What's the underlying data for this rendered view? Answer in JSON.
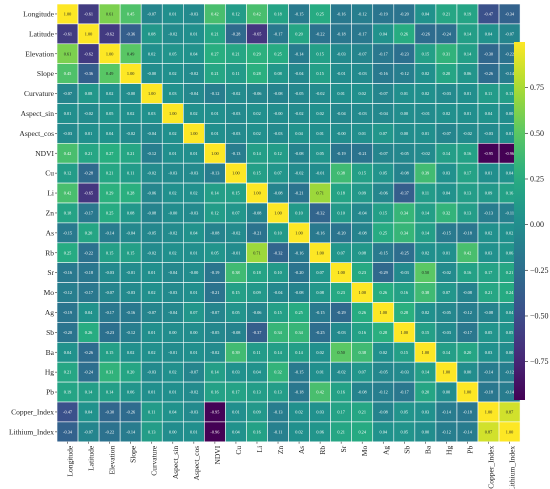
{
  "chart_data": {
    "type": "heatmap",
    "title": "",
    "labels": [
      "Longitude",
      "Latitude",
      "Elevation",
      "Slope",
      "Curvature",
      "Aspect_sin",
      "Aspect_cos",
      "NDVI",
      "Cu",
      "Li",
      "Zn",
      "As",
      "Rb",
      "Sr",
      "Mo",
      "Ag",
      "Sb",
      "Ba",
      "Hg",
      "Pb",
      "Copper_Index",
      "Lithium_Index"
    ],
    "colorscale": "viridis",
    "colorbar": {
      "vmin": -0.96,
      "vmax": 1.0,
      "ticks": [
        0.75,
        0.5,
        0.25,
        0,
        -0.25,
        -0.5,
        -0.75
      ],
      "tick_labels": [
        "0.75",
        "0.50",
        "0.25",
        "0.00",
        "−0.25",
        "−0.50",
        "−0.75"
      ]
    },
    "matrix": [
      [
        1.0,
        -0.61,
        0.61,
        0.45,
        -0.07,
        0.01,
        -0.03,
        0.42,
        0.12,
        0.42,
        0.18,
        -0.15,
        0.25,
        -0.16,
        -0.12,
        -0.19,
        -0.2,
        0.04,
        0.21,
        0.19,
        -0.47,
        -0.34
      ],
      [
        -0.61,
        1.0,
        -0.62,
        -0.36,
        0.08,
        -0.02,
        0.01,
        0.21,
        -0.28,
        -0.65,
        -0.17,
        0.2,
        -0.22,
        -0.18,
        -0.17,
        0.04,
        0.26,
        -0.26,
        -0.24,
        0.14,
        0.04,
        -0.07
      ],
      [
        0.61,
        -0.62,
        1.0,
        0.49,
        0.02,
        0.05,
        0.04,
        0.27,
        0.21,
        0.29,
        0.25,
        -0.14,
        0.15,
        -0.03,
        -0.07,
        -0.17,
        -0.23,
        0.15,
        0.31,
        0.14,
        -0.3,
        -0.22
      ],
      [
        0.45,
        -0.36,
        0.49,
        1.0,
        -0.0,
        0.02,
        -0.02,
        0.21,
        0.11,
        0.28,
        0.08,
        -0.04,
        0.15,
        -0.01,
        -0.03,
        -0.16,
        -0.12,
        0.02,
        0.2,
        0.06,
        -0.26,
        -0.14
      ],
      [
        -0.07,
        0.08,
        0.02,
        -0.0,
        1.0,
        0.03,
        -0.04,
        -0.12,
        -0.02,
        -0.06,
        -0.08,
        -0.05,
        -0.02,
        0.01,
        0.02,
        -0.07,
        0.01,
        0.02,
        -0.03,
        0.01,
        0.11,
        0.13
      ],
      [
        0.01,
        -0.02,
        0.05,
        0.02,
        0.03,
        1.0,
        0.02,
        0.01,
        -0.03,
        0.02,
        -0.0,
        -0.02,
        0.02,
        -0.04,
        -0.03,
        -0.04,
        0.0,
        -0.01,
        0.02,
        0.01,
        0.04,
        0.0
      ],
      [
        -0.03,
        0.01,
        0.04,
        -0.02,
        -0.04,
        0.02,
        1.0,
        0.01,
        -0.03,
        0.02,
        -0.03,
        0.04,
        0.01,
        -0.0,
        0.01,
        0.07,
        0.0,
        0.01,
        -0.07,
        -0.02,
        -0.03,
        0.01
      ],
      [
        0.42,
        0.21,
        0.27,
        0.21,
        -0.12,
        0.01,
        0.01,
        1.0,
        -0.13,
        0.14,
        0.12,
        -0.08,
        0.05,
        -0.19,
        -0.21,
        -0.07,
        -0.05,
        -0.02,
        0.14,
        0.16,
        -0.95,
        -0.96
      ],
      [
        0.12,
        -0.28,
        0.21,
        0.11,
        -0.02,
        -0.03,
        -0.03,
        -0.13,
        1.0,
        0.15,
        0.07,
        -0.02,
        -0.01,
        0.38,
        0.15,
        0.05,
        -0.08,
        0.39,
        0.03,
        0.17,
        0.01,
        0.04
      ],
      [
        0.42,
        -0.65,
        0.29,
        0.28,
        -0.06,
        0.02,
        0.02,
        0.14,
        0.15,
        1.0,
        -0.08,
        -0.21,
        0.71,
        0.18,
        0.09,
        -0.06,
        -0.37,
        0.11,
        0.04,
        0.13,
        0.09,
        0.16
      ],
      [
        0.18,
        -0.17,
        0.25,
        0.08,
        -0.08,
        -0.0,
        -0.03,
        0.12,
        0.07,
        -0.08,
        1.0,
        0.1,
        -0.32,
        0.1,
        -0.04,
        0.15,
        0.34,
        0.14,
        0.32,
        0.13,
        -0.13,
        -0.11
      ],
      [
        -0.15,
        0.2,
        -0.14,
        -0.04,
        -0.05,
        -0.02,
        0.04,
        -0.08,
        -0.02,
        -0.21,
        0.1,
        1.0,
        -0.16,
        -0.2,
        -0.08,
        0.25,
        0.34,
        0.14,
        -0.15,
        -0.18,
        0.02,
        0.02
      ],
      [
        0.25,
        -0.22,
        0.15,
        0.15,
        -0.02,
        0.02,
        0.01,
        0.05,
        -0.01,
        0.71,
        -0.32,
        -0.16,
        1.0,
        0.07,
        0.08,
        -0.15,
        -0.25,
        0.02,
        0.01,
        0.42,
        0.03,
        0.06
      ],
      [
        -0.16,
        -0.18,
        -0.03,
        -0.01,
        0.01,
        -0.04,
        -0.0,
        -0.19,
        0.38,
        0.18,
        0.1,
        -0.2,
        0.07,
        1.0,
        0.23,
        -0.29,
        -0.03,
        0.5,
        -0.02,
        0.16,
        0.17,
        0.21
      ],
      [
        -0.12,
        -0.17,
        -0.07,
        -0.03,
        0.02,
        -0.03,
        0.01,
        -0.21,
        0.15,
        0.09,
        -0.04,
        -0.08,
        0.08,
        0.23,
        1.0,
        0.26,
        0.16,
        0.38,
        0.07,
        -0.08,
        0.21,
        0.24
      ],
      [
        -0.19,
        0.04,
        -0.17,
        -0.16,
        -0.07,
        -0.04,
        0.07,
        -0.07,
        0.05,
        -0.06,
        0.15,
        0.25,
        -0.15,
        -0.29,
        0.26,
        1.0,
        0.28,
        0.02,
        -0.05,
        -0.12,
        -0.08,
        0.04
      ],
      [
        -0.2,
        0.26,
        -0.23,
        -0.12,
        0.01,
        0.0,
        0.0,
        -0.05,
        -0.08,
        -0.37,
        0.34,
        0.34,
        -0.25,
        -0.03,
        0.16,
        0.28,
        1.0,
        0.15,
        -0.03,
        -0.17,
        0.05,
        0.05
      ],
      [
        0.04,
        -0.26,
        0.15,
        0.02,
        0.02,
        -0.01,
        0.01,
        -0.02,
        0.39,
        0.11,
        0.14,
        0.14,
        0.02,
        0.5,
        0.38,
        0.02,
        0.15,
        1.0,
        0.14,
        0.2,
        0.03,
        0.0
      ],
      [
        0.21,
        -0.24,
        0.31,
        0.2,
        -0.03,
        0.02,
        -0.07,
        0.14,
        0.03,
        0.04,
        0.32,
        -0.15,
        0.01,
        -0.02,
        0.07,
        -0.05,
        -0.03,
        0.14,
        1.0,
        0.0,
        -0.14,
        -0.12
      ],
      [
        0.19,
        0.14,
        0.14,
        0.06,
        0.01,
        0.01,
        -0.02,
        0.16,
        0.17,
        0.13,
        0.13,
        -0.18,
        0.42,
        0.16,
        -0.08,
        -0.12,
        -0.17,
        0.2,
        0.0,
        1.0,
        -0.18,
        -0.14
      ],
      [
        -0.47,
        0.04,
        -0.3,
        -0.26,
        0.11,
        0.04,
        -0.03,
        -0.95,
        0.01,
        0.09,
        -0.13,
        0.02,
        0.03,
        0.17,
        0.21,
        -0.08,
        0.05,
        0.03,
        -0.14,
        -0.18,
        1.0,
        0.87
      ],
      [
        -0.34,
        -0.07,
        -0.22,
        -0.14,
        0.13,
        0.0,
        0.01,
        -0.96,
        0.04,
        0.16,
        -0.11,
        0.02,
        0.06,
        0.21,
        0.24,
        0.04,
        0.05,
        0.0,
        -0.12,
        -0.14,
        0.87,
        1.0
      ]
    ]
  }
}
